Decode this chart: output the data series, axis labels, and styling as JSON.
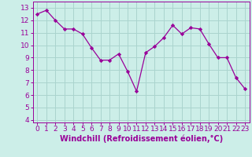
{
  "x": [
    0,
    1,
    2,
    3,
    4,
    5,
    6,
    7,
    8,
    9,
    10,
    11,
    12,
    13,
    14,
    15,
    16,
    17,
    18,
    19,
    20,
    21,
    22,
    23
  ],
  "y": [
    12.5,
    12.8,
    12.0,
    11.3,
    11.3,
    10.9,
    9.8,
    8.8,
    8.8,
    9.3,
    7.9,
    6.3,
    9.4,
    9.9,
    10.6,
    11.6,
    10.9,
    11.4,
    11.3,
    10.1,
    9.0,
    9.0,
    7.4,
    6.5
  ],
  "line_color": "#990099",
  "marker": "D",
  "marker_size": 2.2,
  "bg_color": "#cceee8",
  "grid_color": "#aad4ce",
  "xlabel": "Windchill (Refroidissement éolien,°C)",
  "ylabel_ticks": [
    4,
    5,
    6,
    7,
    8,
    9,
    10,
    11,
    12,
    13
  ],
  "ylim": [
    3.8,
    13.5
  ],
  "xlim": [
    -0.5,
    23.5
  ],
  "tick_color": "#990099",
  "label_color": "#990099",
  "tick_fontsize": 6.5,
  "xlabel_fontsize": 7.0
}
